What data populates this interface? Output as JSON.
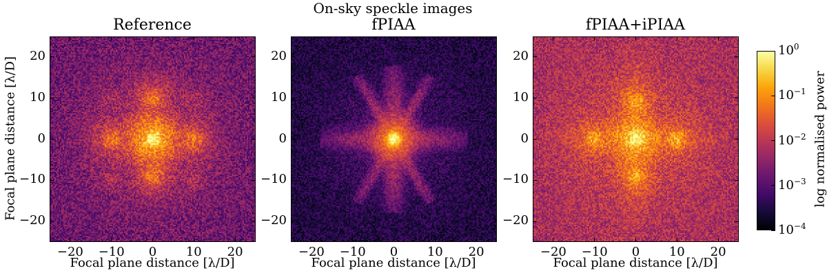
{
  "figure": {
    "suptitle": "On-sky speckle images"
  },
  "chart_data": {
    "type": "heatmap",
    "colormap": "inferno",
    "panels": [
      {
        "title": "Reference",
        "xlabel": "Focal plane distance [λ/D]",
        "ylabel": "Focal plane distance [λ/D]",
        "xlim": [
          -25,
          25
        ],
        "ylim": [
          -25,
          25
        ],
        "xticks": [
          -20,
          -10,
          0,
          10,
          20
        ],
        "yticks": [
          -20,
          -10,
          0,
          10,
          20
        ],
        "features": "bright central core with satellite speckles at (±10,0) and (0,±10), fainter at (±10,±10); noisy background"
      },
      {
        "title": "fPIAA",
        "xlabel": "Focal plane distance [λ/D]",
        "ylabel": "",
        "xlim": [
          -25,
          25
        ],
        "ylim": [
          -25,
          25
        ],
        "xticks": [
          -20,
          -10,
          0,
          10,
          20
        ],
        "yticks": [
          -20,
          -10,
          0,
          10,
          20
        ],
        "features": "compact central core, faint diffraction spikes and cross pattern; dark background"
      },
      {
        "title": "fPIAA+iPIAA",
        "xlabel": "Focal plane distance [λ/D]",
        "ylabel": "",
        "xlim": [
          -25,
          25
        ],
        "ylim": [
          -25,
          25
        ],
        "xticks": [
          -20,
          -10,
          0,
          10,
          20
        ],
        "yticks": [
          -20,
          -10,
          0,
          10,
          20
        ],
        "features": "central core with satellite speckles at (±10,0) and (0,±10); bright noisy background"
      }
    ],
    "colorbar": {
      "label": "log normalised power",
      "scale": "log",
      "range": [
        0.0001,
        1
      ],
      "ticks": [
        {
          "base": "10",
          "exp": "0"
        },
        {
          "base": "10",
          "exp": "−1"
        },
        {
          "base": "10",
          "exp": "−2"
        },
        {
          "base": "10",
          "exp": "−3"
        },
        {
          "base": "10",
          "exp": "−4"
        }
      ]
    }
  }
}
